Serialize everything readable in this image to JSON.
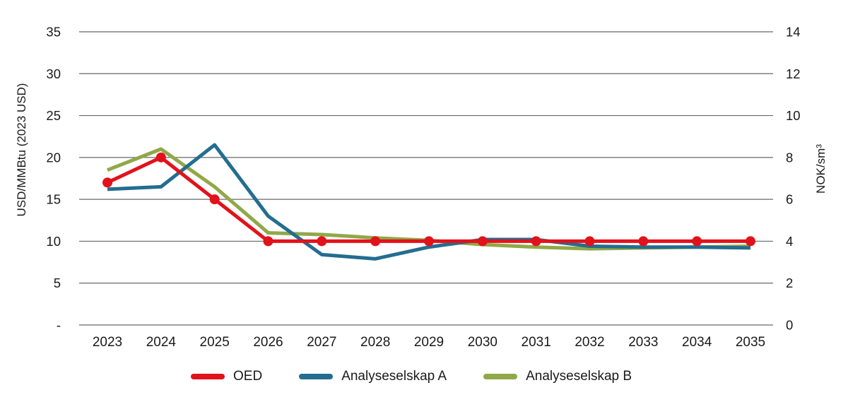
{
  "chart_data": {
    "type": "line",
    "title": "",
    "categories": [
      "2023",
      "2024",
      "2025",
      "2026",
      "2027",
      "2028",
      "2029",
      "2030",
      "2031",
      "2032",
      "2033",
      "2034",
      "2035"
    ],
    "series": [
      {
        "name": "OED",
        "color": "#e2121b",
        "marker": true,
        "values": [
          17,
          20,
          15,
          10,
          10,
          10,
          10,
          10,
          10,
          10,
          10,
          10,
          10
        ]
      },
      {
        "name": "Analyseselskap A",
        "color": "#236d90",
        "marker": false,
        "values": [
          16.2,
          16.5,
          21.5,
          13,
          8.4,
          7.9,
          9.3,
          10.2,
          10.2,
          9.4,
          9.3,
          9.3,
          9.2
        ]
      },
      {
        "name": "Analyseselskap B",
        "color": "#90a848",
        "marker": false,
        "values": [
          18.5,
          21,
          16.5,
          11,
          10.8,
          10.4,
          10.1,
          9.6,
          9.3,
          9.1,
          9.2,
          9.3,
          9.4
        ]
      }
    ],
    "left_axis": {
      "label": "USD/MMBtu (2023 USD)",
      "values": [
        35,
        30,
        25,
        20,
        15,
        10,
        5,
        0
      ],
      "ticks": [
        "35",
        "30",
        "25",
        "20",
        "15",
        "10",
        "5",
        "-"
      ],
      "min": 0,
      "max": 35
    },
    "right_axis": {
      "label": "NOK/sm³",
      "ticks": [
        "14",
        "12",
        "10",
        "8",
        "6",
        "4",
        "2",
        "0"
      ],
      "min": 0,
      "max": 14
    },
    "grid": true,
    "legend_position": "bottom",
    "colors": {
      "gridline": "#686868",
      "boundary_line": "#a0a0a0",
      "text": "#1a1a1a"
    }
  }
}
